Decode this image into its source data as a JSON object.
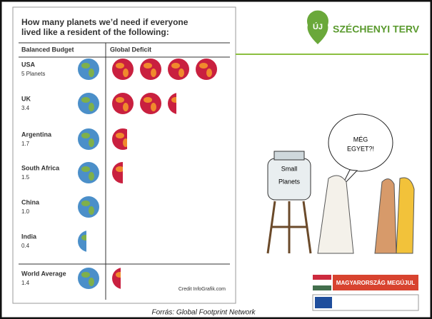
{
  "chart_data": {
    "type": "pictogram",
    "title": "How many planets we’d need if everyone lived like a resident of the following:",
    "column_headers": [
      "Balanced Budget",
      "Global Deficit"
    ],
    "categories": [
      "USA",
      "UK",
      "Argentina",
      "South Africa",
      "China",
      "India",
      "World Average"
    ],
    "values": [
      5,
      3.4,
      1.7,
      1.5,
      1.0,
      0.4,
      1.4
    ],
    "value_labels": [
      "5 Planets",
      "3.4",
      "1.7",
      "1.5",
      "1.0",
      "0.4",
      "1.4"
    ],
    "colors": [
      "#4b8fc9",
      "#c9203f"
    ],
    "credit": "Credit InfoGrafik.com"
  },
  "slide": {
    "logo": "ÚJ",
    "brand": "SZÉCHENYI TERV",
    "bubble": [
      "MÉG",
      "EGYET?!"
    ],
    "jar": [
      "Small",
      "Planets"
    ],
    "banner": "MAGYARORSZÁG MEGÚJUL",
    "source": "Forrás: Global Footprint Network"
  }
}
